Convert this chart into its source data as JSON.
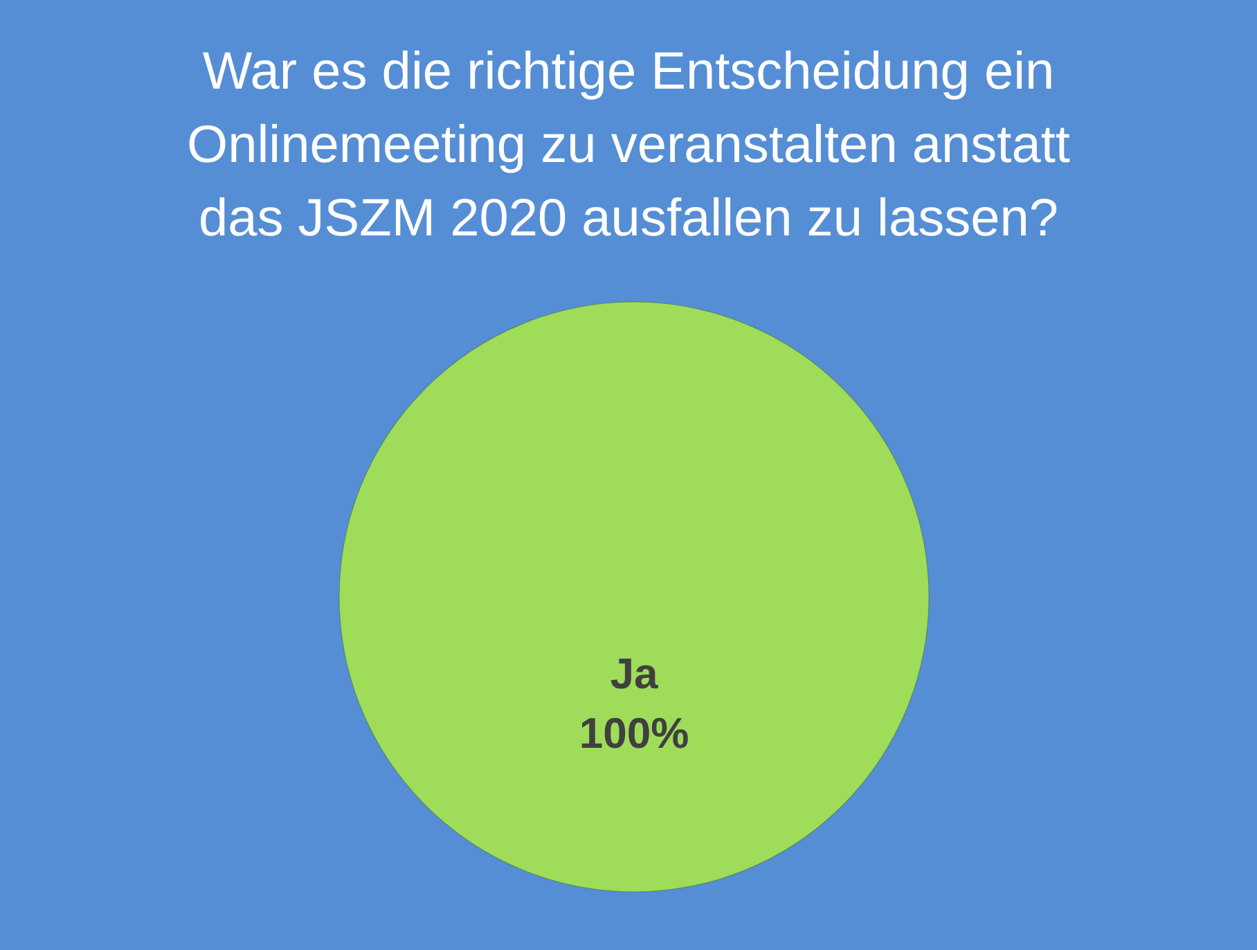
{
  "chart_data": {
    "type": "pie",
    "title": "War es die richtige Entscheidung ein Onlinemeeting zu veranstalten anstatt das JSZM 2020 ausfallen zu lassen?",
    "categories": [
      "Ja"
    ],
    "values": [
      100
    ],
    "colors": [
      "#9edc5a"
    ],
    "value_labels": [
      "100%"
    ]
  }
}
